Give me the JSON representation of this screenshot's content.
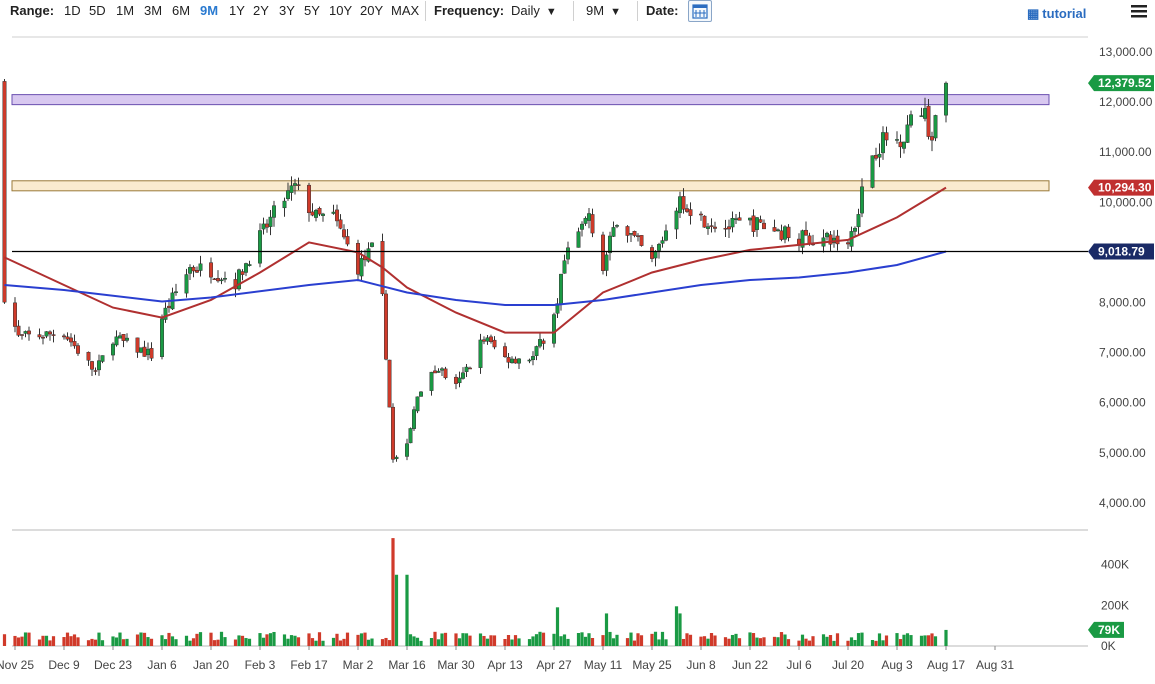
{
  "toolbar": {
    "range_label": "Range:",
    "ranges": [
      "1D",
      "5D",
      "1M",
      "3M",
      "6M",
      "9M",
      "1Y",
      "2Y",
      "3Y",
      "5Y",
      "10Y",
      "20Y",
      "MAX"
    ],
    "active_range": "9M",
    "frequency_label": "Frequency:",
    "frequency_value": "Daily",
    "period_value": "9M",
    "date_label": "Date:",
    "tutorial_label": "tutorial"
  },
  "chart_data": {
    "type": "candlestick",
    "x_labels": [
      "Nov 25",
      "Dec 9",
      "Dec 23",
      "Jan 6",
      "Jan 20",
      "Feb 3",
      "Feb 17",
      "Mar 2",
      "Mar 16",
      "Mar 30",
      "Apr 13",
      "Apr 27",
      "May 11",
      "May 25",
      "Jun 8",
      "Jun 22",
      "Jul 6",
      "Jul 20",
      "Aug 3",
      "Aug 17",
      "Aug 31"
    ],
    "y_ticks": [
      "13,000.00",
      "12,000.00",
      "11,000.00",
      "10,000.00",
      "9,000.00",
      "8,000.00",
      "7,000.00",
      "6,000.00",
      "5,000.00",
      "4,000.00"
    ],
    "ylim": [
      3500,
      13300
    ],
    "volume_ticks": [
      "400K",
      "200K",
      "0K"
    ],
    "volume_lim": [
      0,
      560
    ],
    "price_key_points": [
      [
        "Nov 22",
        8150
      ],
      [
        "Nov 26",
        7300
      ],
      [
        "Dec 9",
        7400
      ],
      [
        "Dec 18",
        6600
      ],
      [
        "Dec 23",
        7300
      ],
      [
        "Jan 3",
        6950
      ],
      [
        "Jan 6",
        7700
      ],
      [
        "Jan 14",
        8700
      ],
      [
        "Jan 20",
        8650
      ],
      [
        "Jan 27",
        8400
      ],
      [
        "Feb 3",
        9300
      ],
      [
        "Feb 9",
        10000
      ],
      [
        "Feb 13",
        10300
      ],
      [
        "Feb 19",
        9700
      ],
      [
        "Feb 24",
        9700
      ],
      [
        "Mar 2",
        8700
      ],
      [
        "Mar 6",
        9050
      ],
      [
        "Mar 9",
        8050
      ],
      [
        "Mar 12",
        4850
      ],
      [
        "Mar 16",
        5100
      ],
      [
        "Mar 19",
        6200
      ],
      [
        "Mar 25",
        6700
      ],
      [
        "Mar 30",
        6300
      ],
      [
        "Apr 7",
        7300
      ],
      [
        "Apr 13",
        6900
      ],
      [
        "Apr 21",
        6900
      ],
      [
        "Apr 27",
        7700
      ],
      [
        "Apr 30",
        8800
      ],
      [
        "May 7",
        9800
      ],
      [
        "May 11",
        8700
      ],
      [
        "May 15",
        9700
      ],
      [
        "May 25",
        8800
      ],
      [
        "Jun 2",
        10100
      ],
      [
        "Jun 8",
        9700
      ],
      [
        "Jun 15",
        9500
      ],
      [
        "Jun 22",
        9600
      ],
      [
        "Jul 6",
        9300
      ],
      [
        "Jul 20",
        9200
      ],
      [
        "Jul 22",
        9600
      ],
      [
        "Jul 26",
        10900
      ],
      [
        "Jul 31",
        11300
      ],
      [
        "Aug 3",
        11200
      ],
      [
        "Aug 8",
        11700
      ],
      [
        "Aug 10",
        11900
      ],
      [
        "Aug 13",
        11300
      ],
      [
        "Aug 15",
        11800
      ],
      [
        "Aug 17",
        12379.52
      ]
    ],
    "series": [
      {
        "name": "",
        "kind": "moving_average",
        "color": "#b03030",
        "points": [
          [
            "Nov 22",
            8900
          ],
          [
            "Dec 9",
            8350
          ],
          [
            "Dec 23",
            7900
          ],
          [
            "Jan 6",
            7700
          ],
          [
            "Jan 20",
            8050
          ],
          [
            "Feb 3",
            8600
          ],
          [
            "Feb 17",
            9200
          ],
          [
            "Mar 2",
            9000
          ],
          [
            "Mar 9",
            8700
          ],
          [
            "Mar 16",
            8300
          ],
          [
            "Mar 30",
            7800
          ],
          [
            "Apr 13",
            7400
          ],
          [
            "Apr 27",
            7400
          ],
          [
            "May 11",
            8200
          ],
          [
            "May 25",
            8600
          ],
          [
            "Jun 8",
            8850
          ],
          [
            "Jun 22",
            9050
          ],
          [
            "Jul 6",
            9150
          ],
          [
            "Jul 20",
            9250
          ],
          [
            "Aug 3",
            9700
          ],
          [
            "Aug 17",
            10294.3
          ]
        ]
      },
      {
        "name": "",
        "kind": "moving_average",
        "color": "#2a3fd0",
        "points": [
          [
            "Nov 22",
            8350
          ],
          [
            "Dec 9",
            8250
          ],
          [
            "Jan 6",
            8020
          ],
          [
            "Jan 20",
            8100
          ],
          [
            "Feb 17",
            8350
          ],
          [
            "Mar 2",
            8450
          ],
          [
            "Mar 16",
            8200
          ],
          [
            "Mar 30",
            8050
          ],
          [
            "Apr 13",
            7950
          ],
          [
            "Apr 27",
            7950
          ],
          [
            "May 11",
            8050
          ],
          [
            "May 25",
            8200
          ],
          [
            "Jun 8",
            8350
          ],
          [
            "Jun 22",
            8450
          ],
          [
            "Jul 6",
            8500
          ],
          [
            "Jul 20",
            8600
          ],
          [
            "Aug 3",
            8750
          ],
          [
            "Aug 17",
            9018.79
          ]
        ]
      }
    ],
    "resistance_zones": [
      {
        "low": 11950,
        "high": 12150,
        "color": "#d8c8f0",
        "border": "#6a4fb0"
      },
      {
        "low": 10230,
        "high": 10430,
        "color": "#faebd0",
        "border": "#9a7a3a"
      }
    ],
    "horizontal_lines": [
      {
        "value": 9018.79,
        "color": "#000000"
      }
    ],
    "price_badges": [
      {
        "text": "12,379.52",
        "value": 12379.52,
        "color": "#1a9a44"
      },
      {
        "text": "10,294.30",
        "value": 10294.3,
        "color": "#c03030"
      },
      {
        "text": "9,018.79",
        "value": 9018.79,
        "color": "#1a2a66"
      }
    ],
    "volume_badge": {
      "text": "79K",
      "value": 79,
      "color": "#1a9a44"
    },
    "volume_spikes": [
      [
        "Mar 12",
        530
      ],
      [
        "Mar 13",
        350
      ],
      [
        "Mar 16",
        350
      ],
      [
        "Apr 28",
        190
      ],
      [
        "May 12",
        160
      ],
      [
        "Jun 1",
        195
      ],
      [
        "Jun 2",
        160
      ]
    ],
    "colors": {
      "up": "#1a9a44",
      "down": "#d03a2a"
    }
  }
}
